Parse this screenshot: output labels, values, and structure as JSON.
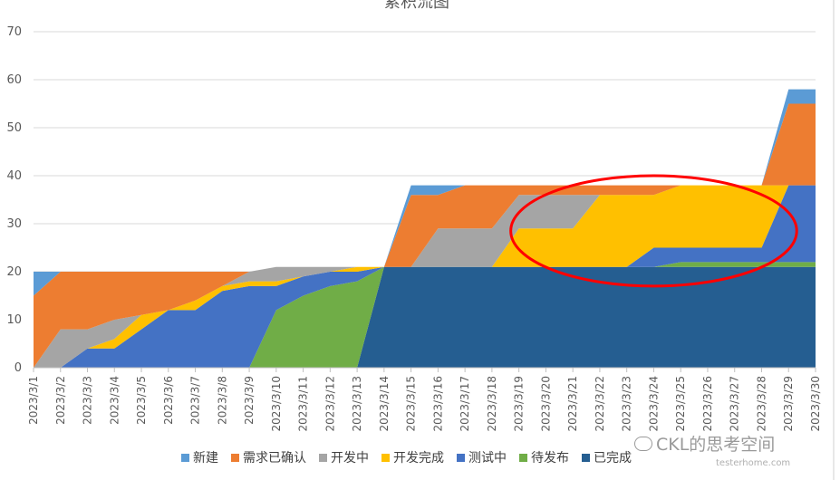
{
  "chart_data": {
    "type": "area",
    "stacked": true,
    "title": "累积流图",
    "ylim": [
      0,
      70
    ],
    "yticks": [
      0,
      10,
      20,
      30,
      40,
      50,
      60,
      70
    ],
    "grid": true,
    "legend_position": "bottom",
    "categories": [
      "2023/3/1",
      "2023/3/2",
      "2023/3/3",
      "2023/3/4",
      "2023/3/5",
      "2023/3/6",
      "2023/3/7",
      "2023/3/8",
      "2023/3/9",
      "2023/3/10",
      "2023/3/11",
      "2023/3/12",
      "2023/3/13",
      "2023/3/14",
      "2023/3/15",
      "2023/3/16",
      "2023/3/17",
      "2023/3/18",
      "2023/3/19",
      "2023/3/20",
      "2023/3/21",
      "2023/3/22",
      "2023/3/23",
      "2023/3/24",
      "2023/3/25",
      "2023/3/26",
      "2023/3/27",
      "2023/3/28",
      "2023/3/29",
      "2023/3/30"
    ],
    "series": [
      {
        "name": "已完成",
        "color": "#255E91",
        "values": [
          0,
          0,
          0,
          0,
          0,
          0,
          0,
          0,
          0,
          0,
          0,
          0,
          0,
          21,
          21,
          21,
          21,
          21,
          21,
          21,
          21,
          21,
          21,
          21,
          21,
          21,
          21,
          21,
          21,
          21
        ]
      },
      {
        "name": "待发布",
        "color": "#70AD47",
        "values": [
          0,
          0,
          0,
          0,
          0,
          0,
          0,
          0,
          0,
          12,
          15,
          17,
          18,
          0,
          0,
          0,
          0,
          0,
          0,
          0,
          0,
          0,
          0,
          0,
          1,
          1,
          1,
          1,
          1,
          1
        ]
      },
      {
        "name": "测试中",
        "color": "#4472C4",
        "values": [
          0,
          0,
          4,
          4,
          8,
          12,
          12,
          16,
          17,
          5,
          4,
          3,
          2,
          0,
          0,
          0,
          0,
          0,
          0,
          0,
          0,
          0,
          0,
          4,
          3,
          3,
          3,
          3,
          16,
          16
        ]
      },
      {
        "name": "开发完成",
        "color": "#FFC000",
        "values": [
          0,
          0,
          0,
          2,
          3,
          0,
          2,
          1,
          1,
          1,
          0,
          0,
          1,
          0,
          0,
          0,
          0,
          0,
          8,
          8,
          8,
          15,
          15,
          11,
          13,
          13,
          13,
          13,
          0,
          0
        ]
      },
      {
        "name": "开发中",
        "color": "#A5A5A5",
        "values": [
          0,
          8,
          4,
          4,
          0,
          0,
          0,
          0,
          2,
          3,
          2,
          1,
          0,
          0,
          0,
          8,
          8,
          8,
          7,
          7,
          7,
          0,
          0,
          0,
          0,
          0,
          0,
          0,
          0,
          0
        ]
      },
      {
        "name": "需求已确认",
        "color": "#ED7D31",
        "values": [
          15,
          12,
          12,
          10,
          9,
          8,
          6,
          3,
          0,
          0,
          0,
          0,
          0,
          0,
          15,
          7,
          9,
          9,
          2,
          2,
          2,
          2,
          2,
          2,
          0,
          0,
          0,
          0,
          17,
          17
        ]
      },
      {
        "name": "新建",
        "color": "#5B9BD5",
        "values": [
          5,
          0,
          0,
          0,
          0,
          0,
          0,
          0,
          0,
          0,
          0,
          0,
          0,
          0,
          2,
          2,
          0,
          0,
          0,
          0,
          0,
          0,
          0,
          0,
          0,
          0,
          0,
          0,
          3,
          3
        ]
      }
    ],
    "legend_order": [
      "新建",
      "需求已确认",
      "开发中",
      "开发完成",
      "测试中",
      "待发布",
      "已完成"
    ],
    "annotation": {
      "shape": "ellipse",
      "color": "#FF0000",
      "from": "2023/3/19",
      "to": "2023/3/29"
    }
  },
  "watermark": {
    "text": "CKL的思考空间",
    "sub": "testerhome.com"
  }
}
